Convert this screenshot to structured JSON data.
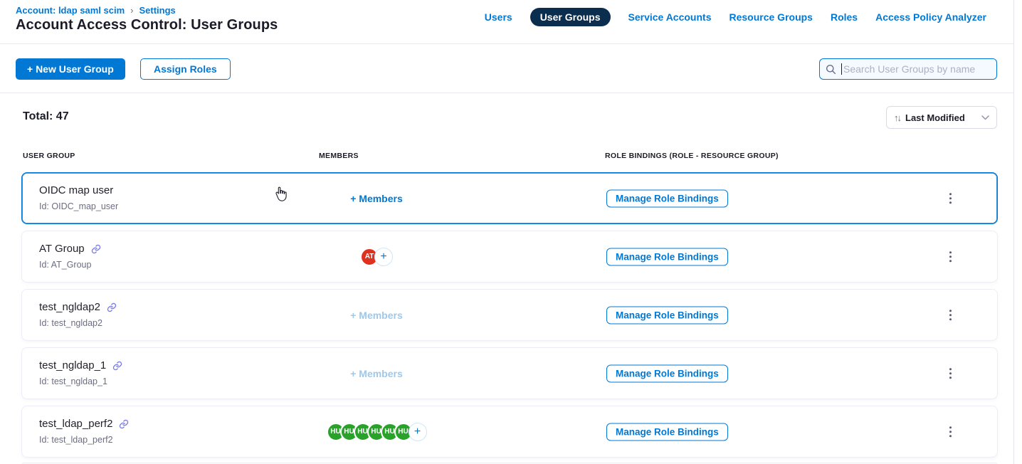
{
  "colors": {
    "accent": "#0278D5",
    "nav_pill": "#0B2E4F",
    "avatar_red": "#E0301E",
    "avatar_green": "#28A228",
    "link_icon": "#7D7DE8"
  },
  "header": {
    "breadcrumb": {
      "account": "Account: ldap saml scim",
      "separator": "›",
      "settings": "Settings"
    },
    "title": "Account Access Control: User Groups"
  },
  "nav": {
    "tabs": [
      {
        "label": "Users",
        "active": false
      },
      {
        "label": "User Groups",
        "active": true
      },
      {
        "label": "Service Accounts",
        "active": false
      },
      {
        "label": "Resource Groups",
        "active": false
      },
      {
        "label": "Roles",
        "active": false
      },
      {
        "label": "Access Policy Analyzer",
        "active": false
      }
    ]
  },
  "toolbar": {
    "new_group_label": "+ New User Group",
    "assign_roles_label": "Assign Roles",
    "search_placeholder": "Search User Groups by name"
  },
  "summary": {
    "total_label": "Total: 47",
    "sort_icon": "↑↓",
    "sort_label": "Last Modified"
  },
  "table": {
    "headers": [
      "USER GROUP",
      "MEMBERS",
      "ROLE BINDINGS (ROLE - RESOURCE GROUP)"
    ],
    "members_add_label": "+ Members",
    "manage_label": "Manage Role Bindings",
    "rows": [
      {
        "name": "OIDC map user",
        "id": "Id: OIDC_map_user",
        "linked": false,
        "highlighted": true,
        "members": {
          "type": "add",
          "enabled": true
        }
      },
      {
        "name": "AT Group",
        "id": "Id: AT_Group",
        "linked": true,
        "highlighted": false,
        "members": {
          "type": "avatars",
          "plus": true,
          "avatars": [
            {
              "text": "AT",
              "color": "#E0301E"
            }
          ]
        }
      },
      {
        "name": "test_ngldap2",
        "id": "Id: test_ngldap2",
        "linked": true,
        "highlighted": false,
        "members": {
          "type": "add",
          "enabled": false
        }
      },
      {
        "name": "test_ngldap_1",
        "id": "Id: test_ngldap_1",
        "linked": true,
        "highlighted": false,
        "members": {
          "type": "add",
          "enabled": false
        }
      },
      {
        "name": "test_ldap_perf2",
        "id": "Id: test_ldap_perf2",
        "linked": true,
        "highlighted": false,
        "members": {
          "type": "avatars",
          "plus": true,
          "avatars": [
            {
              "text": "HU",
              "color": "#28A228"
            },
            {
              "text": "HU",
              "color": "#28A228"
            },
            {
              "text": "HU",
              "color": "#28A228"
            },
            {
              "text": "HU",
              "color": "#28A228"
            },
            {
              "text": "HU",
              "color": "#28A228"
            },
            {
              "text": "HU",
              "color": "#28A228"
            }
          ]
        }
      }
    ]
  }
}
